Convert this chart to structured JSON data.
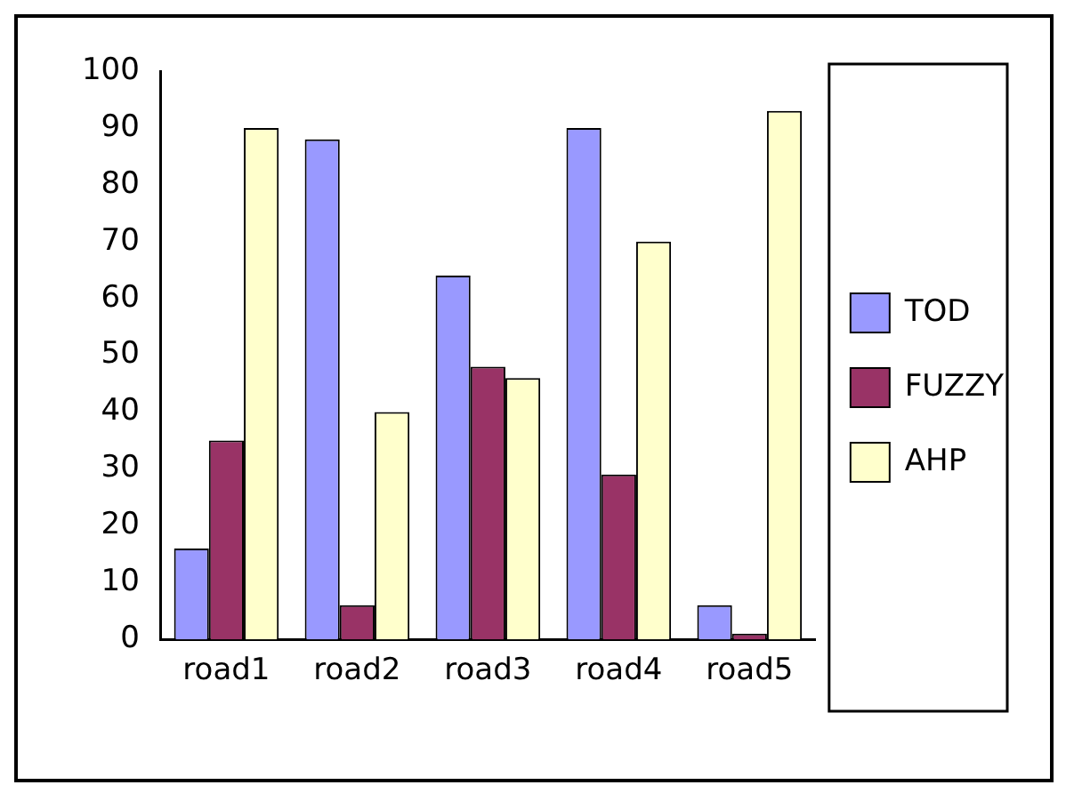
{
  "chart_data": {
    "type": "bar",
    "categories": [
      "road1",
      "road2",
      "road3",
      "road4",
      "road5"
    ],
    "series": [
      {
        "name": "TOD",
        "color": "#9999ff",
        "values": [
          16,
          88,
          64,
          90,
          6
        ]
      },
      {
        "name": "FUZZY",
        "color": "#993366",
        "values": [
          35,
          6,
          48,
          29,
          1
        ]
      },
      {
        "name": "AHP",
        "color": "#ffffcc",
        "values": [
          90,
          40,
          46,
          70,
          93
        ]
      }
    ],
    "ylim": [
      0,
      100
    ],
    "yticks": [
      0,
      10,
      20,
      30,
      40,
      50,
      60,
      70,
      80,
      90,
      100
    ],
    "grid": false,
    "legend": "right"
  }
}
